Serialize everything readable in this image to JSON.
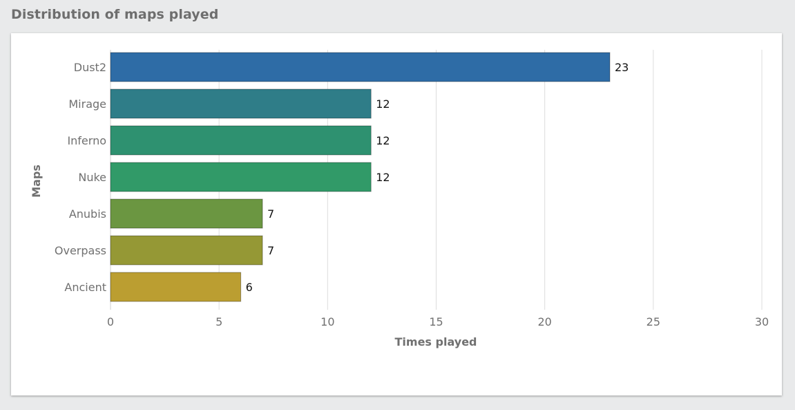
{
  "page": {
    "title": "Distribution of maps played"
  },
  "chart_data": {
    "type": "bar",
    "orientation": "horizontal",
    "title": "Distribution of maps played",
    "xlabel": "Times played",
    "ylabel": "Maps",
    "categories": [
      "Dust2",
      "Mirage",
      "Inferno",
      "Nuke",
      "Anubis",
      "Overpass",
      "Ancient"
    ],
    "values": [
      23,
      12,
      12,
      12,
      7,
      7,
      6
    ],
    "colors": [
      "#2e6ca6",
      "#2f7d88",
      "#2e9170",
      "#319a68",
      "#6b9641",
      "#959835",
      "#bb9e31"
    ],
    "xlim": [
      0,
      30
    ],
    "xticks": [
      0,
      5,
      10,
      15,
      20,
      25,
      30
    ],
    "grid": true,
    "data_labels": true
  }
}
